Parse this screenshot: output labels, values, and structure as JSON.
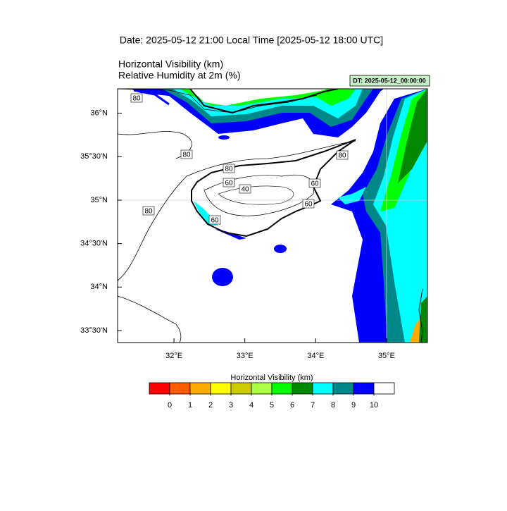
{
  "header": {
    "date": "Date: 2025-05-12  21:00 Local Time [2025-05-12  18:00 UTC]",
    "field_1": "Horizontal Visibility   (km)",
    "field_2": "Relative Humidity at 2m   (%)",
    "dt": "DT: 2025-05-12_00:00:00"
  },
  "map": {
    "xlim": [
      31.204,
      35.577
    ],
    "ylim": [
      33.362,
      36.281
    ],
    "xticks": [
      {
        "value": 32,
        "label": "32°E"
      },
      {
        "value": 33,
        "label": "33°E"
      },
      {
        "value": 34,
        "label": "34°E"
      },
      {
        "value": 35,
        "label": "35°E"
      }
    ],
    "yticks": [
      {
        "value": 36,
        "label": "36°N"
      },
      {
        "value": 35.5,
        "label": "35°30'N"
      },
      {
        "value": 35,
        "label": "35°N"
      },
      {
        "value": 34.5,
        "label": "34°30'N"
      },
      {
        "value": 34,
        "label": "34°N"
      },
      {
        "value": 33.5,
        "label": "33°30'N"
      }
    ],
    "contour_labels": [
      "80",
      "80",
      "80",
      "60",
      "40",
      "60",
      "60",
      "60",
      "80",
      "80"
    ]
  },
  "colorbar": {
    "title": "Horizontal Visibility  (km)",
    "colors": [
      "#ff0000",
      "#ff5a00",
      "#ffaa00",
      "#ffff00",
      "#cccc00",
      "#aaff44",
      "#00ff00",
      "#008800",
      "#00ffff",
      "#008888",
      "#0000ff",
      "#ffffff"
    ],
    "levels": [
      0,
      1,
      2,
      3,
      4,
      5,
      6,
      7,
      8,
      9,
      10
    ]
  }
}
